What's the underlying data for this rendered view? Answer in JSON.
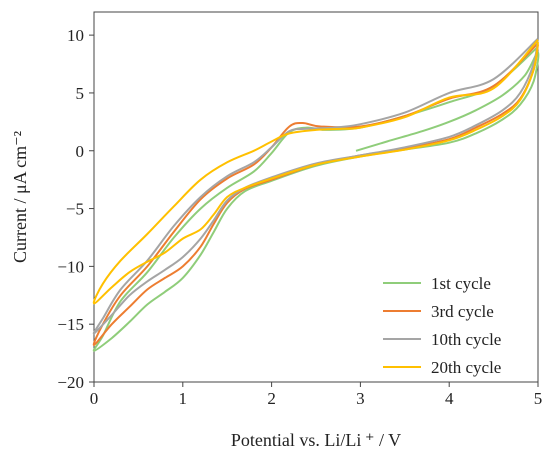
{
  "chart_data": {
    "type": "line",
    "xlabel": "Potential vs. Li/Li ⁺ / V",
    "ylabel": "Current / μA cm⁻²",
    "xlim": [
      0,
      5
    ],
    "ylim": [
      -20,
      12
    ],
    "xticks": [
      0,
      1,
      2,
      3,
      4,
      5
    ],
    "yticks": [
      -20,
      -15,
      -10,
      -5,
      0,
      5,
      10
    ],
    "grid": false,
    "legend_position": "bottom-right",
    "series": [
      {
        "name": "1st cycle",
        "color": "#8fcd7a",
        "points": [
          [
            2.95,
            0.0
          ],
          [
            3.3,
            0.8
          ],
          [
            3.7,
            1.7
          ],
          [
            4.0,
            2.5
          ],
          [
            4.3,
            3.5
          ],
          [
            4.6,
            4.8
          ],
          [
            4.85,
            6.5
          ],
          [
            5.0,
            8.5
          ],
          [
            4.95,
            6.0
          ],
          [
            4.8,
            4.0
          ],
          [
            4.6,
            2.7
          ],
          [
            4.3,
            1.5
          ],
          [
            4.0,
            0.7
          ],
          [
            3.5,
            0.1
          ],
          [
            3.0,
            -0.5
          ],
          [
            2.5,
            -1.3
          ],
          [
            2.0,
            -2.6
          ],
          [
            1.7,
            -3.5
          ],
          [
            1.5,
            -5.0
          ],
          [
            1.35,
            -7.0
          ],
          [
            1.2,
            -9.0
          ],
          [
            1.0,
            -11.0
          ],
          [
            0.8,
            -12.2
          ],
          [
            0.6,
            -13.3
          ],
          [
            0.4,
            -14.8
          ],
          [
            0.2,
            -16.2
          ],
          [
            0.0,
            -17.3
          ],
          [
            0.1,
            -16.0
          ],
          [
            0.3,
            -13.0
          ],
          [
            0.6,
            -10.5
          ],
          [
            0.9,
            -7.5
          ],
          [
            1.2,
            -5.0
          ],
          [
            1.5,
            -3.2
          ],
          [
            1.8,
            -1.8
          ],
          [
            2.0,
            -0.2
          ],
          [
            2.2,
            1.6
          ],
          [
            2.4,
            2.0
          ],
          [
            2.6,
            1.8
          ],
          [
            3.0,
            2.0
          ],
          [
            3.5,
            3.0
          ],
          [
            4.0,
            4.2
          ],
          [
            4.5,
            5.6
          ],
          [
            5.0,
            9.0
          ]
        ]
      },
      {
        "name": "3rd cycle",
        "color": "#ed7d31",
        "points": [
          [
            5.0,
            9.2
          ],
          [
            4.95,
            7.0
          ],
          [
            4.8,
            4.5
          ],
          [
            4.6,
            3.2
          ],
          [
            4.3,
            2.0
          ],
          [
            4.0,
            1.0
          ],
          [
            3.5,
            0.2
          ],
          [
            3.0,
            -0.4
          ],
          [
            2.5,
            -1.2
          ],
          [
            2.0,
            -2.5
          ],
          [
            1.7,
            -3.3
          ],
          [
            1.5,
            -4.5
          ],
          [
            1.35,
            -6.3
          ],
          [
            1.2,
            -8.3
          ],
          [
            1.0,
            -10.0
          ],
          [
            0.8,
            -11.0
          ],
          [
            0.6,
            -12.0
          ],
          [
            0.4,
            -13.5
          ],
          [
            0.2,
            -15.0
          ],
          [
            0.0,
            -16.8
          ],
          [
            0.1,
            -15.0
          ],
          [
            0.3,
            -12.5
          ],
          [
            0.6,
            -10.0
          ],
          [
            0.9,
            -7.0
          ],
          [
            1.2,
            -4.2
          ],
          [
            1.5,
            -2.4
          ],
          [
            1.8,
            -1.2
          ],
          [
            2.0,
            0.3
          ],
          [
            2.2,
            2.1
          ],
          [
            2.35,
            2.4
          ],
          [
            2.55,
            2.1
          ],
          [
            3.0,
            2.1
          ],
          [
            3.5,
            3.0
          ],
          [
            4.0,
            4.5
          ],
          [
            4.5,
            5.6
          ],
          [
            5.0,
            9.3
          ]
        ]
      },
      {
        "name": "10th cycle",
        "color": "#a5a5a5",
        "points": [
          [
            5.0,
            9.7
          ],
          [
            4.95,
            7.5
          ],
          [
            4.8,
            5.0
          ],
          [
            4.6,
            3.5
          ],
          [
            4.3,
            2.2
          ],
          [
            4.0,
            1.2
          ],
          [
            3.5,
            0.3
          ],
          [
            3.0,
            -0.4
          ],
          [
            2.5,
            -1.1
          ],
          [
            2.0,
            -2.3
          ],
          [
            1.7,
            -3.2
          ],
          [
            1.5,
            -4.3
          ],
          [
            1.35,
            -6.0
          ],
          [
            1.2,
            -7.6
          ],
          [
            1.0,
            -9.2
          ],
          [
            0.8,
            -10.3
          ],
          [
            0.6,
            -11.3
          ],
          [
            0.4,
            -12.5
          ],
          [
            0.2,
            -14.2
          ],
          [
            0.0,
            -15.8
          ],
          [
            0.1,
            -14.5
          ],
          [
            0.3,
            -12.0
          ],
          [
            0.6,
            -9.5
          ],
          [
            0.9,
            -6.5
          ],
          [
            1.2,
            -4.0
          ],
          [
            1.5,
            -2.2
          ],
          [
            1.8,
            -1.0
          ],
          [
            2.0,
            0.3
          ],
          [
            2.2,
            1.7
          ],
          [
            2.4,
            1.9
          ],
          [
            2.7,
            2.0
          ],
          [
            3.0,
            2.3
          ],
          [
            3.5,
            3.3
          ],
          [
            4.0,
            5.0
          ],
          [
            4.5,
            6.2
          ],
          [
            5.0,
            9.7
          ]
        ]
      },
      {
        "name": "20th cycle",
        "color": "#ffc000",
        "points": [
          [
            5.0,
            9.4
          ],
          [
            4.95,
            7.0
          ],
          [
            4.8,
            4.4
          ],
          [
            4.6,
            3.0
          ],
          [
            4.3,
            1.8
          ],
          [
            4.0,
            0.9
          ],
          [
            3.5,
            0.1
          ],
          [
            3.0,
            -0.5
          ],
          [
            2.5,
            -1.2
          ],
          [
            2.0,
            -2.4
          ],
          [
            1.7,
            -3.2
          ],
          [
            1.5,
            -4.0
          ],
          [
            1.35,
            -5.5
          ],
          [
            1.2,
            -6.8
          ],
          [
            1.0,
            -7.6
          ],
          [
            0.8,
            -8.8
          ],
          [
            0.6,
            -9.6
          ],
          [
            0.4,
            -10.5
          ],
          [
            0.2,
            -11.8
          ],
          [
            0.0,
            -13.2
          ],
          [
            0.1,
            -11.5
          ],
          [
            0.3,
            -9.5
          ],
          [
            0.6,
            -7.2
          ],
          [
            0.9,
            -4.8
          ],
          [
            1.2,
            -2.5
          ],
          [
            1.5,
            -1.0
          ],
          [
            1.8,
            0.0
          ],
          [
            2.0,
            0.8
          ],
          [
            2.2,
            1.5
          ],
          [
            2.5,
            1.8
          ],
          [
            2.8,
            1.9
          ],
          [
            3.0,
            2.0
          ],
          [
            3.5,
            2.9
          ],
          [
            4.0,
            4.6
          ],
          [
            4.5,
            5.4
          ],
          [
            5.0,
            9.6
          ]
        ]
      }
    ]
  }
}
